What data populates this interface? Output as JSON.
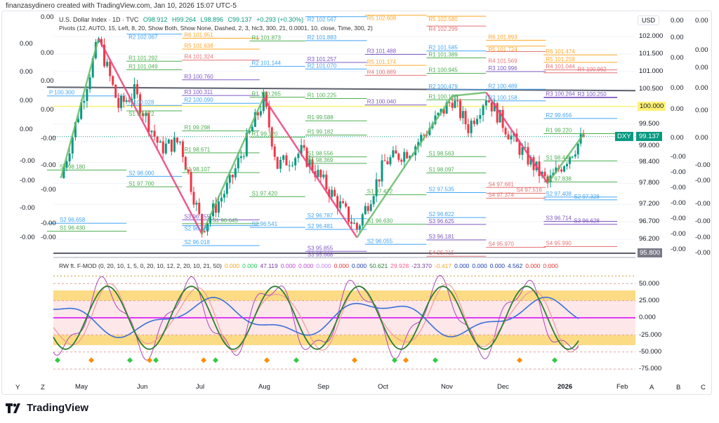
{
  "credit": "finanzasydinero created with TradingView.com, Jan 10, 2026 15:07 UTC-5",
  "symbol": {
    "title": "U.S. Dollar Index · 1D · TVC",
    "open": "O98.912",
    "high": "H99.264",
    "low": "L98.896",
    "close": "C99.137",
    "change": "+0.293 (+0.30%)",
    "ticker": "DXY",
    "last": "99.137"
  },
  "pivots_legend": "Pivots (12, AUTO, 15, Left, 8, 20, Show Both, Show None, Dashed, 2, 3, hlc3, 300, 21, 0.0001, 10, close, Time, 300, 2)",
  "oscillator": {
    "title": "RW ft. F-MOD (0, 20, 10, 1, 5, 0, 20, 10, 12, 2, 20, 10, 21, 50)",
    "values": [
      {
        "v": "0.000",
        "c": "#f5a623"
      },
      {
        "v": "0.000",
        "c": "#22c55e"
      },
      {
        "v": "47.119",
        "c": "#7b3fa0"
      },
      {
        "v": "0.000",
        "c": "#c04bd0"
      },
      {
        "v": "0.000",
        "c": "#c04bd0"
      },
      {
        "v": "0.000",
        "c": "#c084fc"
      },
      {
        "v": "0.000",
        "c": "#e53935"
      },
      {
        "v": "0.000",
        "c": "#1e40af"
      },
      {
        "v": "50.621",
        "c": "#2e7d32"
      },
      {
        "v": "29.928",
        "c": "#f06292"
      },
      {
        "v": "-23.370",
        "c": "#7b3fa0"
      },
      {
        "v": "-0.417",
        "c": "#f5a623"
      },
      {
        "v": "0.000",
        "c": "#1e40af"
      },
      {
        "v": "0.000",
        "c": "#1e40af"
      },
      {
        "v": "0.000",
        "c": "#1e40af"
      },
      {
        "v": "4.562",
        "c": "#1e40af"
      },
      {
        "v": "0.000",
        "c": "#e53935"
      },
      {
        "v": "0.000",
        "c": "#e53935"
      }
    ],
    "axis": [
      "50.000",
      "25.000",
      "0.000",
      "-25.000",
      "-50.000",
      "-75.000"
    ]
  },
  "price_axis": {
    "currency": "USD",
    "ticks": [
      "102.000",
      "101.500",
      "101.000",
      "100.500",
      "99.500",
      "99.000",
      "98.400",
      "97.800",
      "97.200",
      "96.700",
      "96.200"
    ],
    "highlight_yellow": "100.000",
    "highlight_gray": "95.800"
  },
  "extra_scale_right_a": [
    "0.00",
    "0.00",
    "0.00",
    "0.00",
    "0.00",
    "0.00",
    "-0.00",
    "-0.00",
    "-0.00",
    "-0.00",
    "-0.00",
    "-0.00",
    "-0.00"
  ],
  "extra_scale_right_b": [
    "0.00",
    "0.00",
    "0.00",
    "0.00",
    "0.00",
    "0.00",
    "-0.00",
    "-0.00",
    "-0.00",
    "-0.00",
    "-0.00",
    "-0.00"
  ],
  "extra_scale_left_a": [
    "0.00",
    "0.00",
    "0.00",
    "0.00",
    "-0.00",
    "-0.00",
    "-0.00",
    "-0.00"
  ],
  "extra_scale_left_b": [
    "0.00",
    "0.00",
    "0.00",
    "0.00",
    "-0.00",
    "-0.00",
    "-0.00",
    "-0.00",
    "-0.00"
  ],
  "time_axis": [
    "May",
    "Jun",
    "Jul",
    "Aug",
    "Sep",
    "Oct",
    "Nov",
    "Dec",
    "2026",
    "Feb"
  ],
  "corner_letters": {
    "left": [
      "Y",
      "Z"
    ],
    "right": [
      "A",
      "B",
      "C"
    ]
  },
  "brand": "TradingView",
  "colors": {
    "up": "#089981",
    "down": "#f23645",
    "zig_up": "#66bb6a",
    "zig_down": "#ec407a",
    "R1": "#4caf50",
    "R2": "#42a5f5",
    "R3": "#7e57c2",
    "R4": "#e57373",
    "R5": "#ffa726",
    "R6": "#ffa726",
    "S1": "#4caf50",
    "S2": "#42a5f5",
    "S3": "#7e57c2",
    "S4": "#e57373",
    "P": "#42a5f5"
  },
  "chart_data": {
    "type": "candlestick",
    "last_bar": {
      "open": 98.912,
      "high": 99.264,
      "low": 98.896,
      "close": 99.137
    },
    "ylim": [
      95.6,
      102.4
    ],
    "x_range": [
      "2025-04-14",
      "2026-02-10"
    ],
    "price_path": [
      [
        "2025-04-21",
        97.95
      ],
      [
        "2025-05-10",
        101.9
      ],
      [
        "2025-05-20",
        100.0
      ],
      [
        "2025-05-28",
        100.4
      ],
      [
        "2025-06-10",
        98.8
      ],
      [
        "2025-06-20",
        99.0
      ],
      [
        "2025-07-01",
        96.5
      ],
      [
        "2025-07-15",
        97.8
      ],
      [
        "2025-08-01",
        100.2
      ],
      [
        "2025-08-08",
        98.3
      ],
      [
        "2025-08-20",
        98.7
      ],
      [
        "2025-09-17",
        96.5
      ],
      [
        "2025-10-01",
        98.4
      ],
      [
        "2025-10-15",
        98.8
      ],
      [
        "2025-11-04",
        100.2
      ],
      [
        "2025-11-12",
        99.4
      ],
      [
        "2025-11-21",
        100.3
      ],
      [
        "2025-12-05",
        99.0
      ],
      [
        "2025-12-22",
        97.8
      ],
      [
        "2026-01-09",
        99.137
      ]
    ],
    "zigzag": [
      [
        "2025-04-21",
        97.95
      ],
      [
        "2025-05-10",
        101.95
      ],
      [
        "2025-07-01",
        96.35
      ],
      [
        "2025-08-01",
        100.25
      ],
      [
        "2025-09-17",
        96.25
      ],
      [
        "2025-11-04",
        100.3
      ],
      [
        "2025-11-21",
        100.4
      ],
      [
        "2025-12-22",
        97.8
      ],
      [
        "2026-01-09",
        99.2
      ]
    ],
    "trendline": [
      [
        "2025-04-14",
        100.55
      ],
      [
        "2026-02-10",
        100.45
      ]
    ],
    "pivot_periods": [
      {
        "start": "2025-04-14",
        "end": "2025-05-24",
        "levels": [
          [
            "P",
            100.3
          ],
          [
            "S1",
            98.18
          ],
          [
            "S2",
            96.658
          ],
          [
            "S1",
            96.43
          ]
        ]
      },
      {
        "start": "2025-05-24",
        "end": "2025-06-21",
        "levels": [
          [
            "R2",
            102.067
          ],
          [
            "R1",
            101.292
          ],
          [
            "R1",
            101.049
          ],
          [
            "P",
            100.028
          ],
          [
            "S1",
            99.872
          ],
          [
            "S2",
            98.0
          ],
          [
            "S1",
            97.7
          ]
        ]
      },
      {
        "start": "2025-06-21",
        "end": "2025-07-30",
        "levels": [
          [
            "R6",
            101.951
          ],
          [
            "R5",
            101.638
          ],
          [
            "R4",
            101.324
          ],
          [
            "R3",
            100.76
          ],
          [
            "R3",
            100.311
          ],
          [
            "R2",
            100.09
          ],
          [
            "R1",
            99.298
          ],
          [
            "R1",
            98.671
          ],
          [
            "R1",
            98.107
          ],
          [
            "S3",
            96.755
          ],
          [
            "S1",
            96.645
          ],
          [
            "S2",
            96.589
          ],
          [
            "S2",
            96.018
          ]
        ]
      },
      {
        "start": "2025-07-25",
        "end": "2025-08-22",
        "levels": [
          [
            "R1",
            101.873
          ],
          [
            "R2",
            101.144
          ],
          [
            "R1",
            100.265
          ],
          [
            "R1",
            99.12
          ],
          [
            "S1",
            97.42
          ],
          [
            "S2",
            96.541
          ]
        ]
      },
      {
        "start": "2025-08-22",
        "end": "2025-09-22",
        "levels": [
          [
            "R2",
            102.567
          ],
          [
            "R2",
            101.883
          ],
          [
            "R3",
            101.257
          ],
          [
            "R2",
            101.07
          ],
          [
            "R1",
            100.225
          ],
          [
            "R1",
            99.588
          ],
          [
            "R1",
            99.182
          ],
          [
            "S1",
            98.556
          ],
          [
            "S1",
            98.369
          ],
          [
            "S2",
            96.787
          ],
          [
            "S2",
            96.481
          ],
          [
            "S3",
            95.855
          ],
          [
            "S3",
            95.668
          ]
        ]
      },
      {
        "start": "2025-09-21",
        "end": "2025-10-22",
        "levels": [
          [
            "R5",
            102.608
          ],
          [
            "R3",
            101.488
          ],
          [
            "R5",
            101.174
          ],
          [
            "R4",
            100.889
          ],
          [
            "R3",
            100.04
          ],
          [
            "S1",
            97.472
          ],
          [
            "S1",
            96.63
          ],
          [
            "S2",
            96.055
          ]
        ]
      },
      {
        "start": "2025-10-22",
        "end": "2025-11-21",
        "levels": [
          [
            "R5",
            102.58
          ],
          [
            "R4",
            102.299
          ],
          [
            "R2",
            101.585
          ],
          [
            "R1",
            101.389
          ],
          [
            "R1",
            100.945
          ],
          [
            "R2",
            100.479
          ],
          [
            "R1",
            100.188
          ],
          [
            "S1",
            98.563
          ],
          [
            "S1",
            98.097
          ],
          [
            "S2",
            97.535
          ],
          [
            "S2",
            96.822
          ],
          [
            "S3",
            96.625
          ],
          [
            "S3",
            96.181
          ],
          [
            "S4",
            95.715
          ]
        ]
      },
      {
        "start": "2025-11-21",
        "end": "2025-12-21",
        "levels": [
          [
            "R6",
            101.893
          ],
          [
            "R5",
            101.724
          ],
          [
            "R4",
            101.569
          ],
          [
            "R3",
            100.996
          ],
          [
            "R2",
            100.489
          ],
          [
            "R2",
            100.158
          ],
          [
            "S4",
            97.681
          ],
          [
            "S4",
            97.516
          ],
          [
            "S4",
            97.374
          ],
          [
            "S4",
            95.97
          ]
        ]
      },
      {
        "start": "2025-12-20",
        "end": "2026-01-26",
        "levels": [
          [
            "R6",
            101.474
          ],
          [
            "R5",
            101.259
          ],
          [
            "R4",
            101.044
          ],
          [
            "R4",
            100.962
          ],
          [
            "R3",
            100.264
          ],
          [
            "R3",
            100.25
          ],
          [
            "R2",
            99.656
          ],
          [
            "R1",
            99.22
          ],
          [
            "S1",
            98.44
          ],
          [
            "S1",
            97.838
          ],
          [
            "S2",
            97.408
          ],
          [
            "S2",
            97.328
          ],
          [
            "S3",
            96.714
          ],
          [
            "S3",
            96.628
          ],
          [
            "S4",
            95.99
          ]
        ]
      }
    ],
    "oscillator_ylim": [
      -80,
      62
    ],
    "oscillator_bands": {
      "upper": [
        25,
        40
      ],
      "lower": [
        -40,
        -25
      ]
    }
  }
}
